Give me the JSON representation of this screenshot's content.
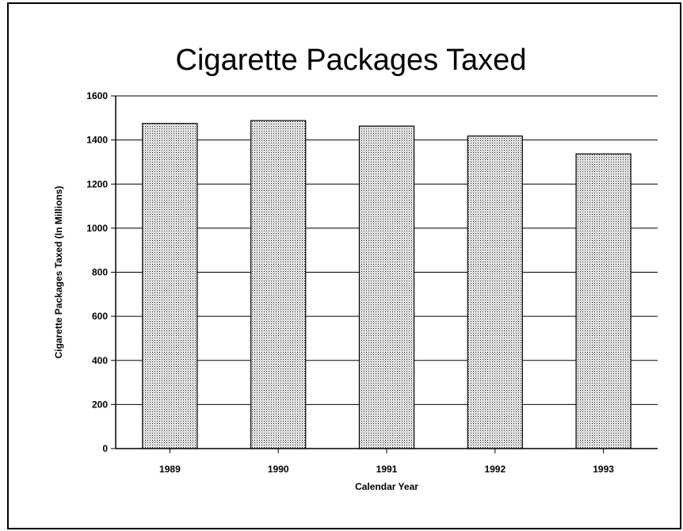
{
  "chart_data": {
    "type": "bar",
    "title": "Cigarette Packages Taxed",
    "xlabel": "Calendar Year",
    "ylabel": "Cigarette Packages Taxed (In Millions)",
    "categories": [
      "1989",
      "1990",
      "1991",
      "1992",
      "1993"
    ],
    "values": [
      1475,
      1488,
      1463,
      1418,
      1337
    ],
    "ylim": [
      0,
      1600
    ],
    "yticks": [
      0,
      200,
      400,
      600,
      800,
      1000,
      1200,
      1400,
      1600
    ],
    "grid": true,
    "legend": "none",
    "colors": {
      "bar_fill": "#c8c8c8",
      "bar_stroke": "#000000",
      "grid": "#000000"
    }
  }
}
